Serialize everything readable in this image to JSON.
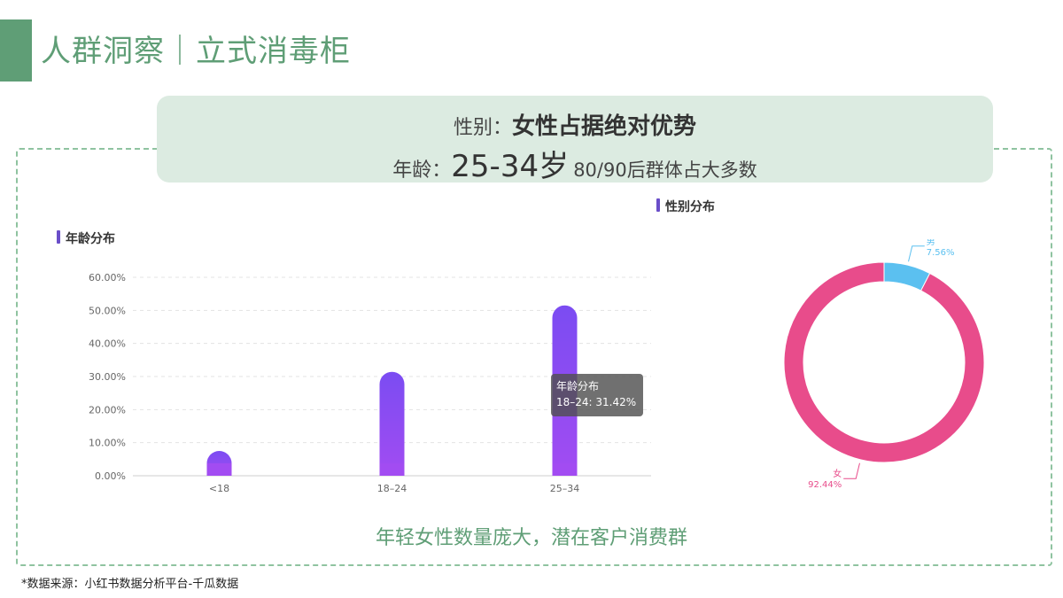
{
  "page": {
    "title": "人群洞察｜立式消毒柜"
  },
  "summary": {
    "gender_label": "性别：",
    "gender_value": "女性占据绝对优势",
    "age_label": "年龄：",
    "age_value": "25-34岁",
    "age_note": "80/90后群体占大多数"
  },
  "age_section_title": "年龄分布",
  "gender_section_title": "性别分布",
  "tooltip": {
    "title": "年龄分布",
    "line": "18–24: 31.42%"
  },
  "conclusion": "年轻女性数量庞大，潜在客户消费群",
  "source": "*数据来源：小红书数据分析平台-千瓜数据",
  "colors": {
    "accent_green": "#5f9e76",
    "bar_top": "#7b4cf2",
    "bar_bottom": "#a24cf2",
    "female": "#e84c8b",
    "male": "#5bc0f0"
  },
  "chart_data": [
    {
      "type": "bar",
      "title": "年龄分布",
      "categories": [
        "<18",
        "18–24",
        "25–34"
      ],
      "values": [
        7.5,
        31.42,
        51.5
      ],
      "y_ticks": [
        "0.00%",
        "10.00%",
        "20.00%",
        "30.00%",
        "40.00%",
        "50.00%",
        "60.00%"
      ],
      "ylim": [
        0,
        60
      ],
      "grid": true
    },
    {
      "type": "pie",
      "title": "性别分布",
      "slices": [
        {
          "name": "男",
          "value": 7.56,
          "label": "7.56%"
        },
        {
          "name": "女",
          "value": 92.44,
          "label": "92.44%"
        }
      ]
    }
  ]
}
